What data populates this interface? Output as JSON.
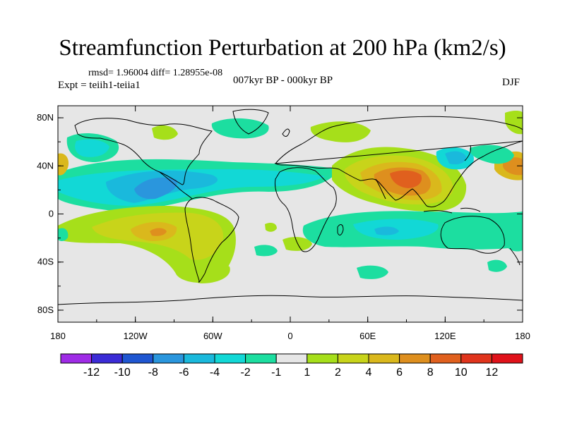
{
  "title": "Streamfunction Perturbation at 200 hPa (km2/s)",
  "stats_line": "rmsd= 1.96004  diff= 1.28955e-08",
  "experiment": "Expt = teiih1-teiia1",
  "period": "007kyr BP - 000kyr BP",
  "season": "DJF",
  "chart_data": {
    "type": "heatmap",
    "projection": "cylindrical equidistant",
    "lon_range": [
      -180,
      180
    ],
    "lat_range": [
      -90,
      90
    ],
    "x_ticks": [
      "180",
      "120W",
      "60W",
      "0",
      "60E",
      "120E",
      "180"
    ],
    "y_ticks": [
      "80N",
      "40N",
      "0",
      "40S",
      "80S"
    ],
    "colorbar": {
      "labels": [
        "-12",
        "-10",
        "-8",
        "-6",
        "-4",
        "-2",
        "-1",
        "1",
        "2",
        "4",
        "6",
        "8",
        "10",
        "12"
      ],
      "colors": [
        "#9f2be6",
        "#3b2bd6",
        "#1f56d1",
        "#2a96dd",
        "#1ab9dc",
        "#12d8d6",
        "#1cdea0",
        "#e6e6e6",
        "#a6df1a",
        "#c8d41a",
        "#dab81c",
        "#de8f1e",
        "#e0601e",
        "#e0341c",
        "#e0121a"
      ]
    },
    "features": [
      {
        "lon": 86,
        "lat": 23,
        "value": 10,
        "desc": "positive center over South Asia / Tibet"
      },
      {
        "lon": -108,
        "lat": -20,
        "value": 6,
        "desc": "positive center over tropical southeast Pacific"
      },
      {
        "lon": -115,
        "lat": 15,
        "value": -6,
        "desc": "negative band across north tropical Pacific and Atlantic"
      },
      {
        "lon": 75,
        "lat": -20,
        "value": -6,
        "desc": "negative band across south Indian Ocean"
      },
      {
        "lon": 178,
        "lat": 37,
        "value": 4,
        "desc": "positive cell near dateline north Pacific"
      },
      {
        "lon": 147,
        "lat": 40,
        "value": -6,
        "desc": "negative cell east of Japan"
      }
    ]
  }
}
